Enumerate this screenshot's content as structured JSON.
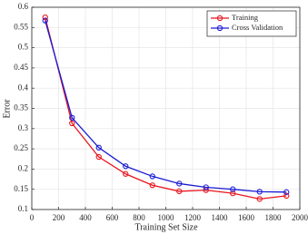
{
  "chart_data": {
    "type": "line",
    "x_label": "Training Set Size",
    "y_label": "Error",
    "x": [
      100,
      300,
      500,
      700,
      900,
      1100,
      1300,
      1500,
      1700,
      1900
    ],
    "series": [
      {
        "name": "Training",
        "color": "#e8141e",
        "values": [
          0.575,
          0.313,
          0.23,
          0.188,
          0.16,
          0.145,
          0.148,
          0.14,
          0.126,
          0.134
        ]
      },
      {
        "name": "Cross Validation",
        "color": "#1a1ad6",
        "values": [
          0.567,
          0.327,
          0.253,
          0.207,
          0.182,
          0.164,
          0.155,
          0.15,
          0.144,
          0.143
        ]
      }
    ],
    "xlim": [
      0,
      2000
    ],
    "xticks": [
      0,
      200,
      400,
      600,
      800,
      1000,
      1200,
      1400,
      1600,
      1800,
      2000
    ],
    "ylim": [
      0.1,
      0.6
    ],
    "yticks": [
      0.1,
      0.15,
      0.2,
      0.25,
      0.3,
      0.35,
      0.4,
      0.45,
      0.5,
      0.55,
      0.6
    ],
    "grid": true,
    "legend": "top-right"
  }
}
